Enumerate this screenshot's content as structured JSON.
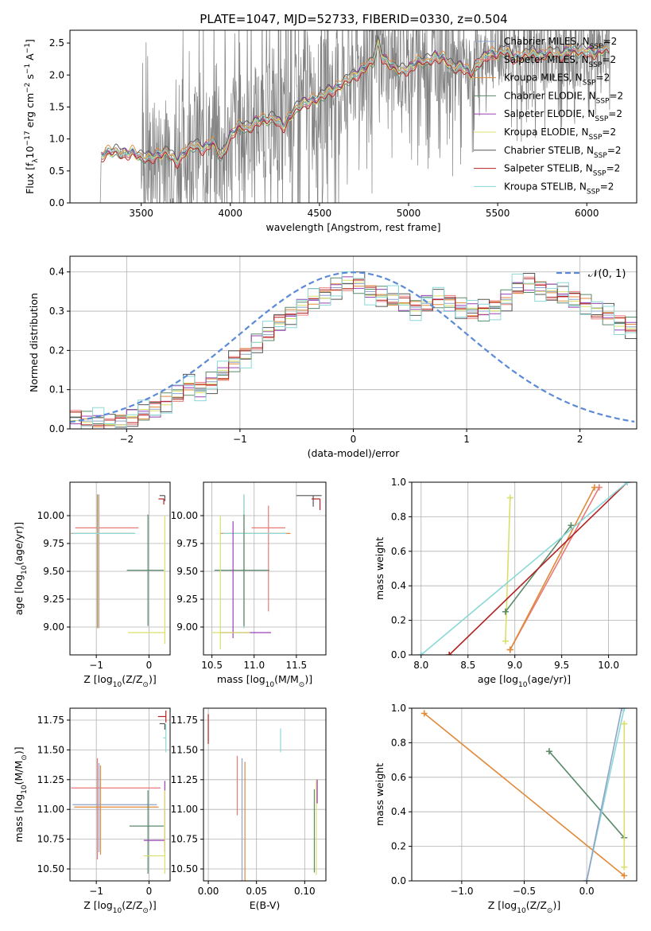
{
  "figure": {
    "title": "PLATE=1047, MJD=52733, FIBERID=0330, z=0.504"
  },
  "legend": {
    "entries": [
      {
        "name": "Chabrier MILES, N",
        "sub": "SSP",
        "suffix": "=2",
        "color": "#8fa3c9"
      },
      {
        "name": "Salpeter MILES, N",
        "sub": "SSP",
        "suffix": "=2",
        "color": "#e87a7a"
      },
      {
        "name": "Kroupa MILES, N",
        "sub": "SSP",
        "suffix": "=2",
        "color": "#e08a3a"
      },
      {
        "name": "Chabrier ELODIE, N",
        "sub": "SSP",
        "suffix": "=2",
        "color": "#5a8a6a"
      },
      {
        "name": "Salpeter ELODIE, N",
        "sub": "SSP",
        "suffix": "=2",
        "color": "#9b40b5"
      },
      {
        "name": "Kroupa ELODIE, N",
        "sub": "SSP",
        "suffix": "=2",
        "color": "#d9e06a"
      },
      {
        "name": "Chabrier STELIB, N",
        "sub": "SSP",
        "suffix": "=2",
        "color": "#555555"
      },
      {
        "name": "Salpeter STELIB, N",
        "sub": "SSP",
        "suffix": "=2",
        "color": "#b22222"
      },
      {
        "name": "Kroupa STELIB, N",
        "sub": "SSP",
        "suffix": "=2",
        "color": "#8ad8d8"
      }
    ]
  },
  "chart_data": [
    {
      "id": "spectrum",
      "type": "line",
      "xlabel": "wavelength [Angstrom, rest frame]",
      "ylabel_parts": [
        "Flux [f",
        "λ",
        "10",
        "−17",
        " erg cm",
        "−2",
        " s",
        "−1",
        " A",
        "−1",
        "]"
      ],
      "xlim": [
        3100,
        6280
      ],
      "ylim": [
        0,
        2.7
      ],
      "xticks": [
        3500,
        4000,
        4500,
        5000,
        5500,
        6000
      ],
      "yticks": [
        0.0,
        0.5,
        1.0,
        1.5,
        2.0,
        2.5
      ],
      "data_color": "#808080",
      "model_points": [
        [
          3270,
          0
        ],
        [
          3275,
          0.72
        ],
        [
          3300,
          0.78
        ],
        [
          3350,
          0.8
        ],
        [
          3400,
          0.77
        ],
        [
          3450,
          0.79
        ],
        [
          3500,
          0.7
        ],
        [
          3550,
          0.72
        ],
        [
          3600,
          0.75
        ],
        [
          3650,
          0.78
        ],
        [
          3700,
          0.65
        ],
        [
          3750,
          0.8
        ],
        [
          3800,
          0.9
        ],
        [
          3850,
          0.85
        ],
        [
          3900,
          0.95
        ],
        [
          3950,
          0.7
        ],
        [
          4000,
          1.05
        ],
        [
          4050,
          1.2
        ],
        [
          4100,
          1.15
        ],
        [
          4150,
          1.3
        ],
        [
          4200,
          1.28
        ],
        [
          4250,
          1.32
        ],
        [
          4300,
          1.2
        ],
        [
          4350,
          1.4
        ],
        [
          4400,
          1.55
        ],
        [
          4450,
          1.6
        ],
        [
          4500,
          1.62
        ],
        [
          4550,
          1.75
        ],
        [
          4600,
          1.8
        ],
        [
          4650,
          1.9
        ],
        [
          4700,
          2.0
        ],
        [
          4750,
          2.1
        ],
        [
          4800,
          2.2
        ],
        [
          4830,
          2.5
        ],
        [
          4850,
          2.3
        ],
        [
          4900,
          2.15
        ],
        [
          4950,
          2.05
        ],
        [
          5000,
          2.1
        ],
        [
          5050,
          2.2
        ],
        [
          5100,
          2.2
        ],
        [
          5150,
          2.3
        ],
        [
          5200,
          2.25
        ],
        [
          5250,
          2.1
        ],
        [
          5300,
          2.15
        ],
        [
          5350,
          2.0
        ],
        [
          5400,
          2.2
        ],
        [
          5450,
          2.35
        ],
        [
          5500,
          2.3
        ],
        [
          5550,
          2.4
        ],
        [
          5600,
          2.25
        ],
        [
          5650,
          2.3
        ],
        [
          5700,
          2.35
        ],
        [
          5750,
          2.3
        ],
        [
          5800,
          2.35
        ],
        [
          5850,
          2.3
        ],
        [
          5900,
          2.4
        ],
        [
          5950,
          2.35
        ],
        [
          6000,
          2.38
        ],
        [
          6050,
          2.33
        ],
        [
          6100,
          2.4
        ],
        [
          6130,
          2.4
        ]
      ]
    },
    {
      "id": "residuals",
      "type": "histogram",
      "xlabel": "(data-model)/error",
      "ylabel": "Normed distribution",
      "xlim": [
        -2.5,
        2.5
      ],
      "ylim": [
        0,
        0.44
      ],
      "xticks": [
        -2,
        -1,
        0,
        1,
        2
      ],
      "yticks": [
        0.0,
        0.1,
        0.2,
        0.3,
        0.4
      ],
      "bin_width": 0.1,
      "bin_start": -2.5,
      "gaussian_label": "𝒩(0, 1)",
      "gaussian_color": "#5b8ad6",
      "base_values": [
        0.03,
        0.02,
        0.02,
        0.01,
        0.02,
        0.03,
        0.04,
        0.05,
        0.07,
        0.09,
        0.11,
        0.1,
        0.12,
        0.14,
        0.17,
        0.19,
        0.22,
        0.24,
        0.27,
        0.29,
        0.31,
        0.33,
        0.34,
        0.36,
        0.37,
        0.37,
        0.35,
        0.34,
        0.33,
        0.32,
        0.31,
        0.32,
        0.33,
        0.32,
        0.31,
        0.3,
        0.3,
        0.31,
        0.33,
        0.36,
        0.37,
        0.36,
        0.35,
        0.34,
        0.33,
        0.32,
        0.3,
        0.29,
        0.27,
        0.26,
        0.25,
        0.23,
        0.22,
        0.2,
        0.18,
        0.16,
        0.14,
        0.13,
        0.11,
        0.1,
        0.09,
        0.08,
        0.07,
        0.06,
        0.05,
        0.05,
        0.04,
        0.04,
        0.03,
        0.03,
        0.03
      ]
    },
    {
      "id": "age-vs-Z",
      "type": "errorbar",
      "xlabel_parts": [
        "Z [log",
        "10",
        "(Z/Z",
        "⊙",
        ")]"
      ],
      "ylabel_parts": [
        "age  [log",
        "10",
        "(age/yr)]"
      ],
      "xlim": [
        -1.5,
        0.4
      ],
      "ylim": [
        8.75,
        10.3
      ],
      "xticks": [
        -1,
        0
      ],
      "yticks": [
        9.0,
        9.25,
        9.5,
        9.75,
        10.0
      ],
      "points": [
        {
          "x": -0.98,
          "y": 9.84,
          "xerr": [
            0.5,
            0.7
          ],
          "yerr": [
            0.85,
            0.35
          ],
          "color": "#e08a3a"
        },
        {
          "x": -0.95,
          "y": 9.89,
          "xerr": [
            0.45,
            0.75
          ],
          "yerr": [
            0.9,
            0.3
          ],
          "color": "#e87a7a"
        },
        {
          "x": -0.96,
          "y": 9.84,
          "xerr": [
            0.5,
            0.7
          ],
          "yerr": [
            0.85,
            0.35
          ],
          "color": "#8ad8d8"
        },
        {
          "x": -0.02,
          "y": 9.51,
          "xerr": [
            0.4,
            0.3
          ],
          "yerr": [
            0.5,
            0.5
          ],
          "color": "#5a8a6a"
        },
        {
          "x": 0.3,
          "y": 8.95,
          "xerr": [
            0.7,
            0.0
          ],
          "yerr": [
            0.1,
            1.05
          ],
          "color": "#d9e06a"
        },
        {
          "x": 0.3,
          "y": 10.18,
          "xerr": [
            0.1,
            0.0
          ],
          "yerr": [
            0.05,
            0.0
          ],
          "color": "#555555"
        },
        {
          "x": 0.28,
          "y": 10.15,
          "xerr": [
            0.1,
            0.0
          ],
          "yerr": [
            0.05,
            0.0
          ],
          "color": "#b22222"
        }
      ]
    },
    {
      "id": "age-vs-mass",
      "type": "errorbar",
      "xlabel_parts": [
        "mass [log",
        "10",
        "(M/M",
        "⊙",
        ")]"
      ],
      "ylabel_parts": [],
      "xlim": [
        10.4,
        11.85
      ],
      "ylim": [
        8.75,
        10.3
      ],
      "xticks": [
        10.5,
        11.0,
        11.5
      ],
      "yticks": [
        9.0,
        9.25,
        9.5,
        9.75,
        10.0
      ],
      "points": [
        {
          "x": 10.88,
          "y": 9.84,
          "xerr": [
            0.28,
            0.55
          ],
          "yerr": [
            0.85,
            0.35
          ],
          "color": "#e08a3a"
        },
        {
          "x": 11.17,
          "y": 9.89,
          "xerr": [
            0.2,
            0.2
          ],
          "yerr": [
            0.75,
            0.2
          ],
          "color": "#e87a7a"
        },
        {
          "x": 10.88,
          "y": 9.84,
          "xerr": [
            0.25,
            0.5
          ],
          "yerr": [
            0.85,
            0.35
          ],
          "color": "#8ad8d8"
        },
        {
          "x": 10.88,
          "y": 9.51,
          "xerr": [
            0.35,
            0.3
          ],
          "yerr": [
            0.5,
            0.5
          ],
          "color": "#5a8a6a"
        },
        {
          "x": 10.75,
          "y": 8.95,
          "xerr": [
            0.15,
            0.45
          ],
          "yerr": [
            0.05,
            1.0
          ],
          "color": "#9b40b5"
        },
        {
          "x": 10.6,
          "y": 8.95,
          "xerr": [
            0.1,
            0.35
          ],
          "yerr": [
            0.15,
            1.05
          ],
          "color": "#d9e06a"
        },
        {
          "x": 11.7,
          "y": 10.18,
          "xerr": [
            0.2,
            0.1
          ],
          "yerr": [
            0.1,
            0.0
          ],
          "color": "#555555"
        },
        {
          "x": 11.78,
          "y": 10.15,
          "xerr": [
            0.1,
            0.0
          ],
          "yerr": [
            0.1,
            0.0
          ],
          "color": "#b22222"
        }
      ]
    },
    {
      "id": "massweight-vs-age",
      "type": "line",
      "xlabel_parts": [
        "age  [log",
        "10",
        "(age/yr)]"
      ],
      "ylabel": "mass weight",
      "xlim": [
        7.9,
        10.3
      ],
      "ylim": [
        0,
        1.0
      ],
      "xticks": [
        8.0,
        8.5,
        9.0,
        9.5,
        10.0
      ],
      "yticks": [
        0.0,
        0.2,
        0.4,
        0.6,
        0.8,
        1.0
      ],
      "series": [
        {
          "color": "#d9e06a",
          "points": [
            [
              8.9,
              0.08
            ],
            [
              8.95,
              0.91
            ]
          ]
        },
        {
          "color": "#5a8a6a",
          "points": [
            [
              8.9,
              0.25
            ],
            [
              9.6,
              0.75
            ]
          ]
        },
        {
          "color": "#e87a7a",
          "points": [
            [
              8.95,
              0.03
            ],
            [
              9.9,
              0.97
            ]
          ]
        },
        {
          "color": "#e08a3a",
          "points": [
            [
              8.95,
              0.03
            ],
            [
              9.85,
              0.97
            ]
          ]
        },
        {
          "color": "#b22222",
          "points": [
            [
              8.3,
              0.0
            ],
            [
              10.2,
              1.0
            ]
          ]
        },
        {
          "color": "#8ad8d8",
          "points": [
            [
              8.0,
              0.0
            ],
            [
              10.2,
              1.0
            ]
          ]
        }
      ]
    },
    {
      "id": "mass-vs-Z",
      "type": "errorbar",
      "xlabel_parts": [
        "Z [log",
        "10",
        "(Z/Z",
        "⊙",
        ")]"
      ],
      "ylabel_parts": [
        "mass [log",
        "10",
        "(M/M",
        "⊙",
        ")]"
      ],
      "xlim": [
        -1.5,
        0.4
      ],
      "ylim": [
        10.4,
        11.85
      ],
      "xticks": [
        -1,
        0
      ],
      "yticks": [
        10.5,
        10.75,
        11.0,
        11.25,
        11.5,
        11.75
      ],
      "points": [
        {
          "x": -0.98,
          "y": 11.18,
          "xerr": [
            0.5,
            1.2
          ],
          "yerr": [
            0.6,
            0.25
          ],
          "color": "#e87a7a"
        },
        {
          "x": -0.95,
          "y": 11.04,
          "xerr": [
            0.5,
            1.1
          ],
          "yerr": [
            0.4,
            0.35
          ],
          "color": "#8fa3c9"
        },
        {
          "x": -0.92,
          "y": 11.02,
          "xerr": [
            0.5,
            1.1
          ],
          "yerr": [
            0.4,
            0.35
          ],
          "color": "#e08a3a"
        },
        {
          "x": -0.02,
          "y": 10.86,
          "xerr": [
            0.35,
            0.3
          ],
          "yerr": [
            0.4,
            0.3
          ],
          "color": "#5a8a6a"
        },
        {
          "x": 0.3,
          "y": 10.74,
          "xerr": [
            0.4,
            0.0
          ],
          "yerr": [
            0.1,
            0.5
          ],
          "color": "#9b40b5"
        },
        {
          "x": 0.3,
          "y": 10.61,
          "xerr": [
            0.4,
            0.0
          ],
          "yerr": [
            0.15,
            0.55
          ],
          "color": "#d9e06a"
        },
        {
          "x": 0.32,
          "y": 11.78,
          "xerr": [
            0.15,
            0.0
          ],
          "yerr": [
            0.05,
            0.05
          ],
          "color": "#b22222"
        },
        {
          "x": 0.3,
          "y": 11.72,
          "xerr": [
            0.1,
            0.0
          ],
          "yerr": [
            0.05,
            0.0
          ],
          "color": "#555555"
        },
        {
          "x": 0.32,
          "y": 11.6,
          "xerr": [
            0.05,
            0.0
          ],
          "yerr": [
            0.12,
            0.12
          ],
          "color": "#8ad8d8"
        }
      ]
    },
    {
      "id": "mass-vs-EBV",
      "type": "errorbar",
      "xlabel": "E(B-V)",
      "ylabel_parts": [],
      "xlim": [
        -0.005,
        0.122
      ],
      "ylim": [
        10.4,
        11.85
      ],
      "xticks": [
        0.0,
        0.05,
        0.1
      ],
      "xtick_labels": [
        "0.00",
        "0.05",
        "0.10"
      ],
      "yticks": [
        10.5,
        10.75,
        11.0,
        11.25,
        11.5,
        11.75
      ],
      "points": [
        {
          "x": 0.0,
          "y": 11.7,
          "yerr": [
            0.15,
            0.1
          ],
          "color": "#b22222"
        },
        {
          "x": 0.03,
          "y": 11.2,
          "yerr": [
            0.25,
            0.25
          ],
          "color": "#e87a7a"
        },
        {
          "x": 0.035,
          "y": 10.98,
          "yerr": [
            0.6,
            0.45
          ],
          "color": "#8fa3c9"
        },
        {
          "x": 0.038,
          "y": 10.9,
          "yerr": [
            0.5,
            0.5
          ],
          "color": "#e08a3a"
        },
        {
          "x": 0.075,
          "y": 11.58,
          "yerr": [
            0.1,
            0.1
          ],
          "color": "#8ad8d8"
        },
        {
          "x": 0.11,
          "y": 10.82,
          "yerr": [
            0.35,
            0.35
          ],
          "color": "#5a8a6a"
        },
        {
          "x": 0.112,
          "y": 10.75,
          "yerr": [
            0.3,
            0.5
          ],
          "color": "#d9e06a"
        },
        {
          "x": 0.113,
          "y": 11.15,
          "yerr": [
            0.1,
            0.1
          ],
          "color": "#9b40b5"
        }
      ]
    },
    {
      "id": "massweight-vs-Z",
      "type": "line",
      "xlabel_parts": [
        "Z [log",
        "10",
        "(Z/Z",
        "⊙",
        ")]"
      ],
      "ylabel": "mass weight",
      "xlim": [
        -1.4,
        0.4
      ],
      "ylim": [
        0,
        1.0
      ],
      "xticks": [
        -1.0,
        -0.5,
        0.0
      ],
      "yticks": [
        0.0,
        0.2,
        0.4,
        0.6,
        0.8,
        1.0
      ],
      "series": [
        {
          "color": "#e08a3a",
          "points": [
            [
              -1.3,
              0.97
            ],
            [
              0.3,
              0.03
            ]
          ]
        },
        {
          "color": "#5a8a6a",
          "points": [
            [
              -0.3,
              0.75
            ],
            [
              0.3,
              0.25
            ]
          ]
        },
        {
          "color": "#8ad8d8",
          "points": [
            [
              0.0,
              0.0
            ],
            [
              0.3,
              1.0
            ]
          ]
        },
        {
          "color": "#8fa3c9",
          "points": [
            [
              0.0,
              0.0
            ],
            [
              0.28,
              1.0
            ]
          ]
        },
        {
          "color": "#d9e06a",
          "points": [
            [
              0.3,
              0.08
            ],
            [
              0.3,
              0.91
            ]
          ]
        }
      ]
    }
  ]
}
